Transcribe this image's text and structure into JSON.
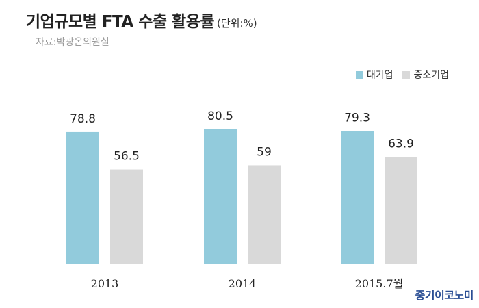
{
  "header": {
    "title": "기업규모별 FTA 수출 활용률",
    "unit": "(단위:%)",
    "source": "자료:박광온의원실"
  },
  "watermark": "중기이코노미",
  "chart_data": {
    "type": "bar",
    "title": "기업규모별 FTA 수출 활용률",
    "categories": [
      "2013",
      "2014",
      "2015.7월"
    ],
    "series": [
      {
        "name": "대기업",
        "color": "#92cbdc",
        "values": [
          78.8,
          80.5,
          79.3
        ]
      },
      {
        "name": "중소기업",
        "color": "#d9d9d9",
        "values": [
          56.5,
          59,
          63.9
        ]
      }
    ],
    "value_labels": [
      [
        "78.8",
        "80.5",
        "79.3"
      ],
      [
        "56.5",
        "59",
        "63.9"
      ]
    ],
    "ylim": [
      0,
      100
    ],
    "grid": false,
    "legend_position": "top-right"
  }
}
